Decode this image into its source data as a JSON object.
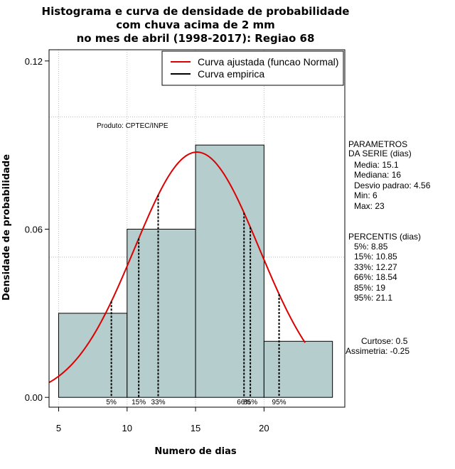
{
  "chart_data": {
    "type": "bar",
    "title_lines": [
      "Histograma e curva de densidade de probabilidade",
      "com chuva acima de 2 mm",
      "no mes de abril (1998-2017): Regiao 68"
    ],
    "xlabel": "Numero de dias",
    "ylabel": "Densidade de probabilidade",
    "xlim": [
      4.3,
      25.9
    ],
    "ylim": [
      -0.0035,
      0.124
    ],
    "x_ticks": [
      5,
      10,
      15,
      20
    ],
    "y_ticks": [
      0.0,
      0.06,
      0.12
    ],
    "y_tick_labels": [
      "0.00",
      "0.06",
      "0.12"
    ],
    "grid": true,
    "grid_y": [
      0.05,
      0.1
    ],
    "bins": [
      {
        "start": 5,
        "end": 10,
        "density": 0.03
      },
      {
        "start": 10,
        "end": 15,
        "density": 0.06
      },
      {
        "start": 15,
        "end": 20,
        "density": 0.09
      },
      {
        "start": 20,
        "end": 25,
        "density": 0.02
      }
    ],
    "bar_color": "#b5cdcd",
    "curve_color": "#dd0000",
    "normal_fit": {
      "mean": 15.1,
      "sd": 4.56,
      "x_range": [
        4.3,
        23
      ]
    },
    "percentile_lines": [
      {
        "label": "5%",
        "x": 8.85
      },
      {
        "label": "15%",
        "x": 10.85
      },
      {
        "label": "33%",
        "x": 12.27
      },
      {
        "label": "66%",
        "x": 18.54
      },
      {
        "label": "85%",
        "x": 19
      },
      {
        "label": "95%",
        "x": 21.1
      }
    ],
    "legend": {
      "position": "top-right",
      "entries": [
        {
          "label": "Curva ajustada (funcao Normal)",
          "color": "#dd0000"
        },
        {
          "label": "Curva empirica",
          "color": "#000000"
        }
      ]
    },
    "annotation": "Produto: CPTEC/INPE",
    "parametros": {
      "heading": [
        "PARAMETROS",
        "DA SERIE (dias)"
      ],
      "lines": [
        "Media: 15.1",
        "Mediana: 16",
        "Desvio padrao: 4.56",
        "Min: 6",
        "Max: 23"
      ]
    },
    "percentis": {
      "heading": "PERCENTIS (dias)",
      "lines": [
        "5%: 8.85",
        "15%: 10.85",
        "33%: 12.27",
        "66%: 18.54",
        "85%: 19",
        "95%: 21.1"
      ]
    },
    "stats": [
      "Curtose: 0.5",
      "Assimetria: -0.25"
    ]
  }
}
